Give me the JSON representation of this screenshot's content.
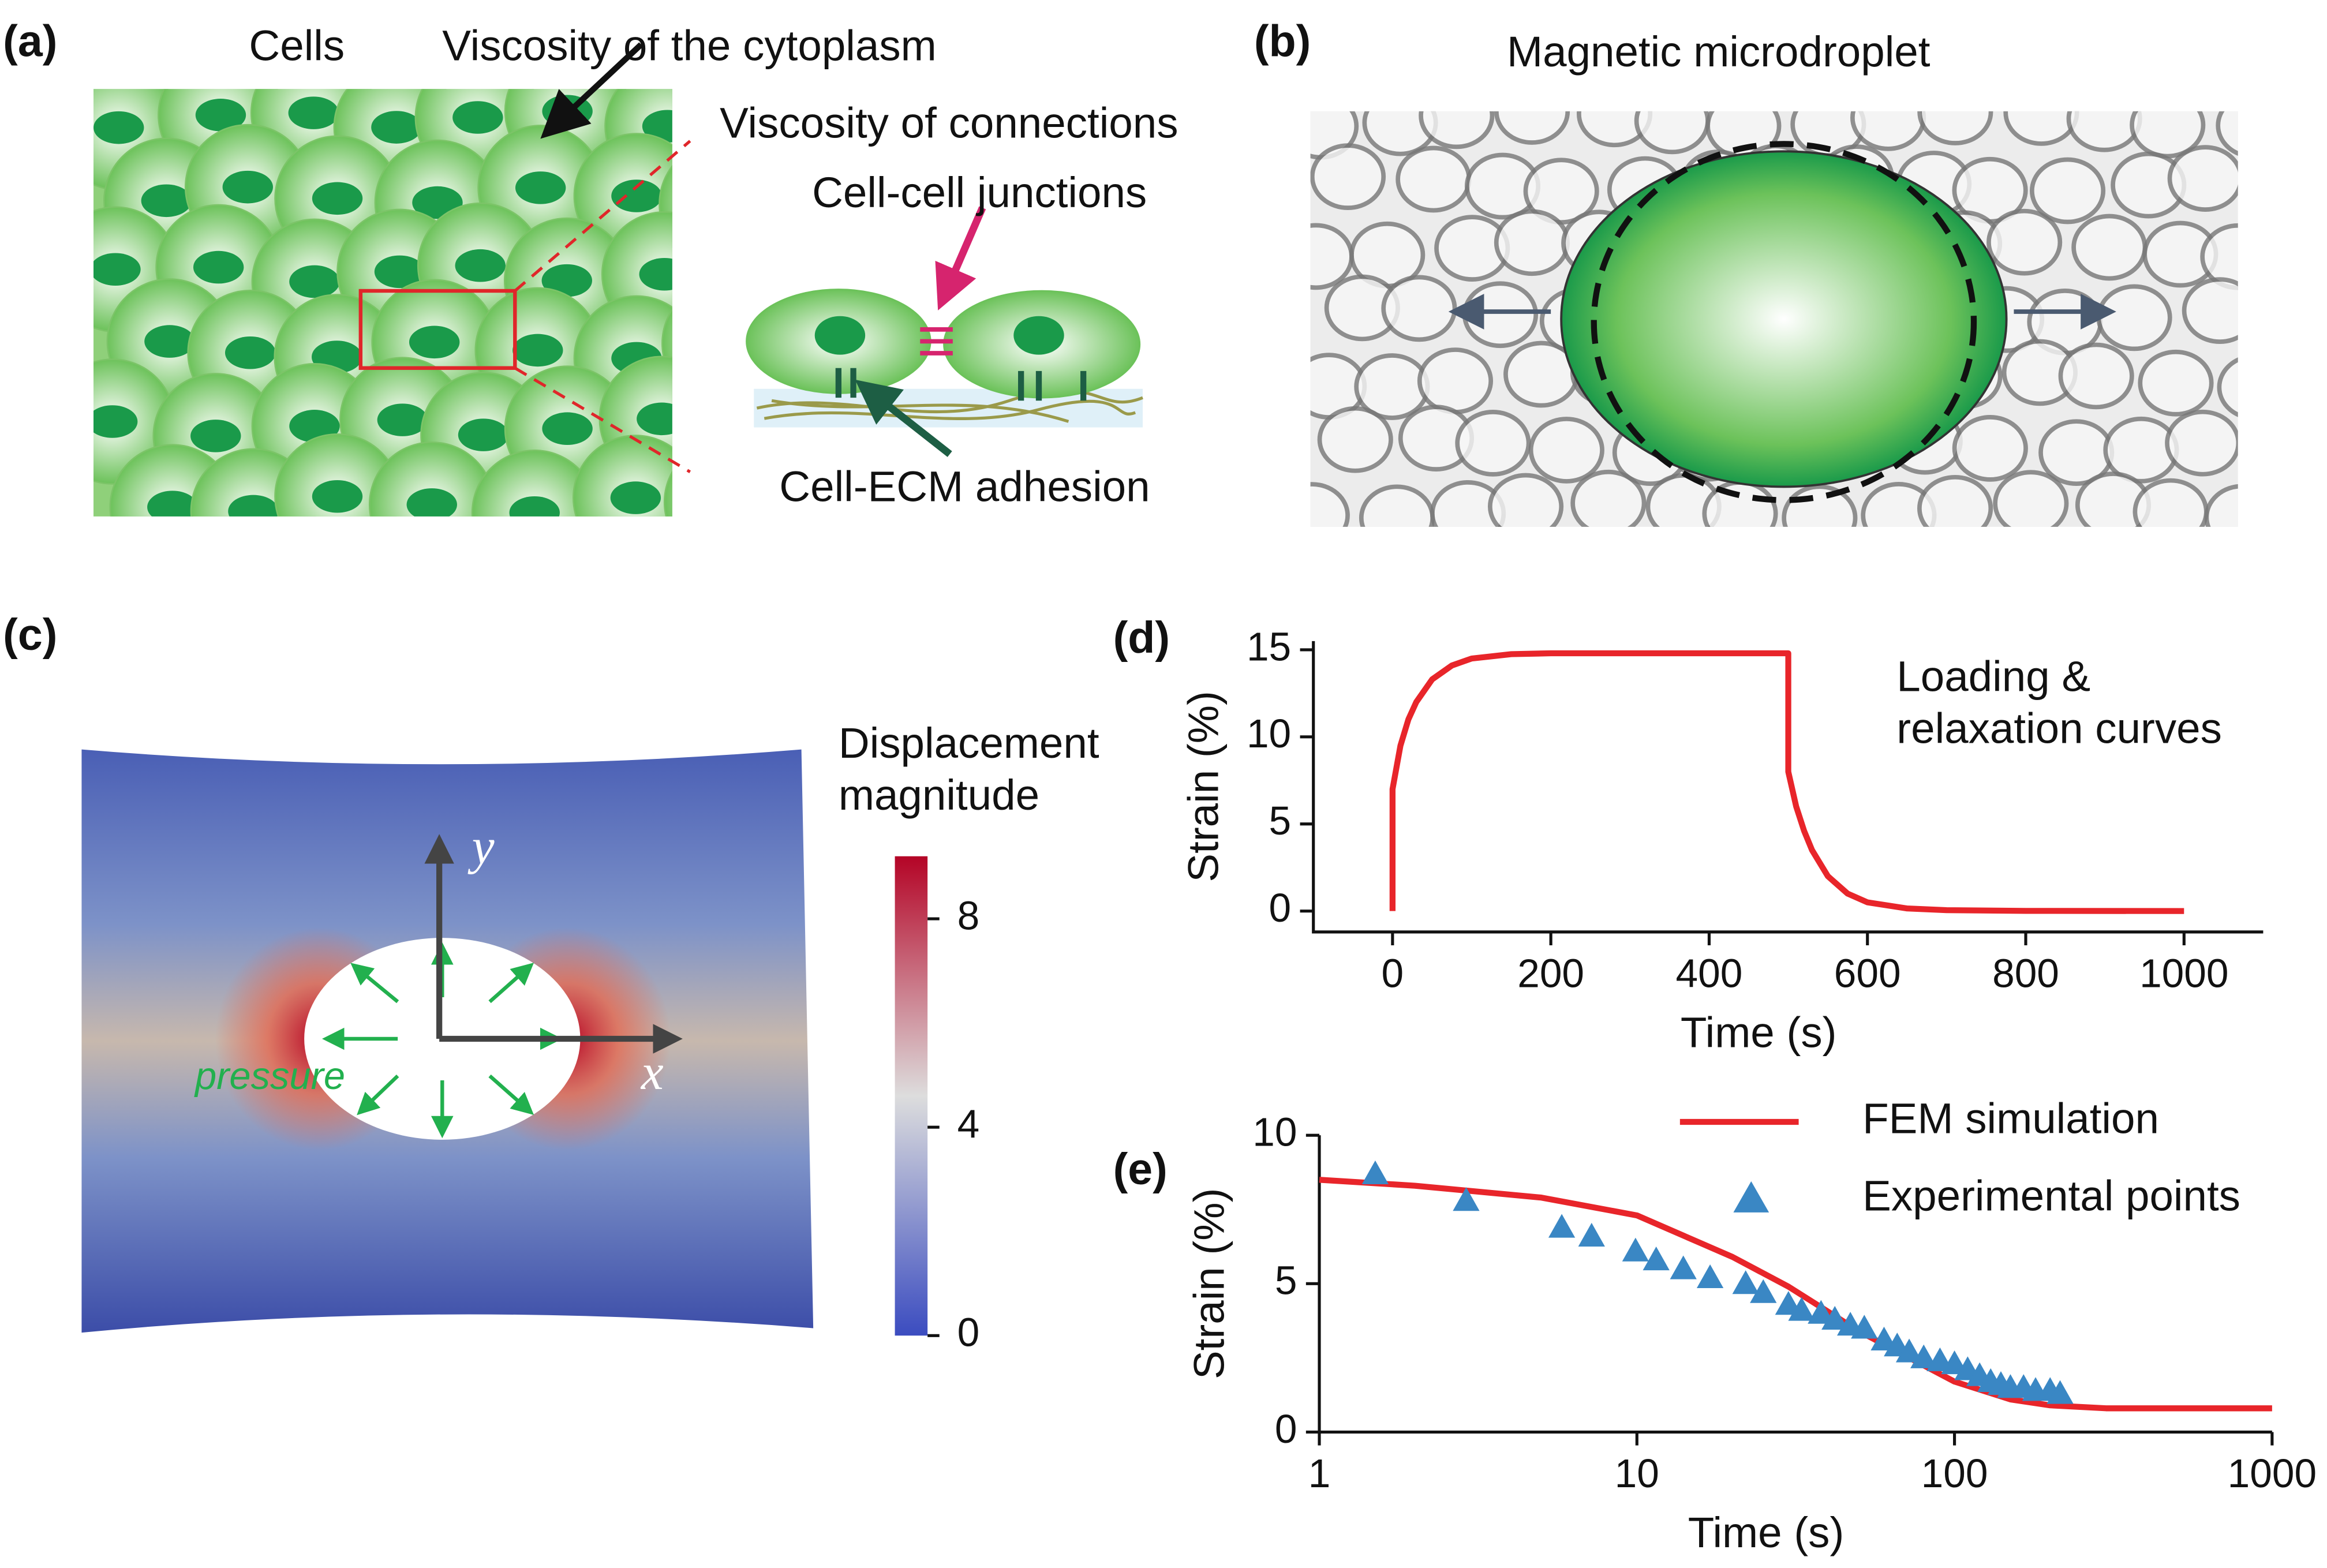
{
  "panels": {
    "a": {
      "label": "(a)",
      "cells": "Cells",
      "cytoplasm": "Viscosity of the cytoplasm",
      "connections": "Viscosity of connections",
      "junctions": "Cell-cell junctions",
      "adhesion": "Cell-ECM adhesion"
    },
    "b": {
      "label": "(b)",
      "title": "Magnetic microdroplet"
    },
    "c": {
      "label": "(c)",
      "colorbar_title": [
        "Displacement",
        "magnitude"
      ],
      "pressure": "pressure",
      "x_axis": "x",
      "y_axis": "y",
      "colorbar": {
        "lim": [
          0,
          9.2
        ],
        "ticks": [
          0,
          4,
          8
        ],
        "colors": [
          "#3b4cc0",
          "#dddddd",
          "#b40426"
        ]
      }
    }
  },
  "chart_data": [
    {
      "type": "line",
      "panel_label": "(d)",
      "x": [
        0,
        0,
        10,
        20,
        30,
        50,
        75,
        100,
        150,
        200,
        300,
        400,
        500,
        500,
        510,
        520,
        530,
        550,
        575,
        600,
        650,
        700,
        800,
        1000
      ],
      "values": [
        0,
        7,
        9.5,
        11,
        12,
        13.3,
        14.1,
        14.5,
        14.75,
        14.8,
        14.8,
        14.8,
        14.8,
        8,
        6,
        4.6,
        3.5,
        2,
        1,
        0.5,
        0.15,
        0.05,
        0.01,
        0
      ],
      "color": "#e8252a",
      "xlim": [
        -100,
        1100
      ],
      "ylim": [
        -1.2,
        15.5
      ],
      "xticks": [
        0,
        200,
        400,
        600,
        800,
        1000
      ],
      "yticks": [
        0,
        5,
        10,
        15
      ],
      "xlabel": "Time (s)",
      "ylabel": "Strain (%)",
      "annotation": [
        "Loading &",
        "relaxation curves"
      ]
    },
    {
      "type": "line",
      "panel_label": "(e)",
      "xscale": "log",
      "xlim": [
        1,
        1000
      ],
      "ylim": [
        0,
        10
      ],
      "xticks": [
        1,
        10,
        100,
        1000
      ],
      "yticks": [
        0,
        5,
        10
      ],
      "xlabel": "Time (s)",
      "ylabel": "Strain (%)",
      "series": [
        {
          "name": "FEM simulation",
          "color": "#e8252a",
          "x": [
            1,
            2,
            5,
            10,
            20,
            30,
            50,
            100,
            150,
            200,
            300,
            1000
          ],
          "values": [
            8.5,
            8.3,
            7.9,
            7.3,
            5.9,
            4.9,
            3.4,
            1.7,
            1.1,
            0.9,
            0.8,
            0.8
          ]
        },
        {
          "name": "Experimental points",
          "color": "#3a87c4",
          "marker": "triangle",
          "x": [
            1.5,
            2.9,
            5.8,
            7.2,
            9.9,
            11.5,
            14,
            17,
            22,
            25,
            30,
            33,
            38,
            42,
            47,
            52,
            60,
            66,
            72,
            80,
            90,
            100,
            110,
            120,
            130,
            140,
            150,
            165,
            180,
            200,
            215
          ],
          "values": [
            8.7,
            7.8,
            6.9,
            6.6,
            6.1,
            5.8,
            5.5,
            5.2,
            5.0,
            4.7,
            4.3,
            4.1,
            4.0,
            3.8,
            3.6,
            3.5,
            3.1,
            2.9,
            2.7,
            2.5,
            2.4,
            2.3,
            2.1,
            1.9,
            1.7,
            1.6,
            1.5,
            1.5,
            1.4,
            1.4,
            1.3
          ]
        }
      ]
    }
  ]
}
